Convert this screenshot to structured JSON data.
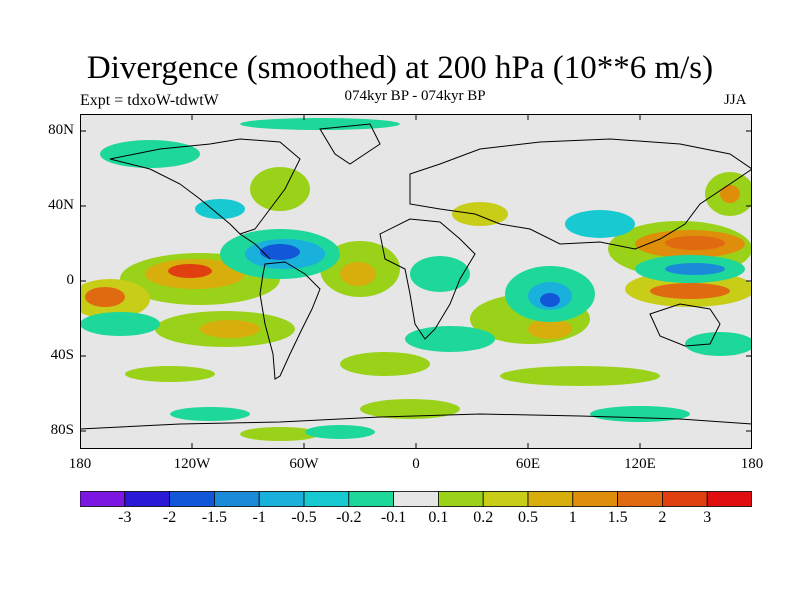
{
  "header": {
    "title": "Divergence (smoothed) at 200 hPa (10**6 m/s)",
    "experiment": "Expt = tdxoW-tdwtW",
    "period": "074kyr BP - 074kyr BP",
    "season": "JJA"
  },
  "axes": {
    "lat_labels": [
      "80N",
      "40N",
      "0",
      "40S",
      "80S"
    ],
    "lon_labels": [
      "180",
      "120W",
      "60W",
      "0",
      "60E",
      "120E",
      "180"
    ]
  },
  "colorbar": {
    "labels": [
      "-3",
      "-2",
      "-1.5",
      "-1",
      "-0.5",
      "-0.2",
      "-0.1",
      "0.1",
      "0.2",
      "0.5",
      "1",
      "1.5",
      "2",
      "3"
    ],
    "colors": [
      "#7b17e0",
      "#2a19d6",
      "#1357d9",
      "#1a8ad9",
      "#1ab0dc",
      "#17c9d0",
      "#1ed79a",
      "#e6e6e6",
      "#9ad21a",
      "#c8cd17",
      "#d8ae0c",
      "#df8e0c",
      "#e06a10",
      "#e03f10",
      "#e00e0e"
    ]
  },
  "palette": {
    "neutral": "#e6e6e6",
    "border": "#000000"
  }
}
